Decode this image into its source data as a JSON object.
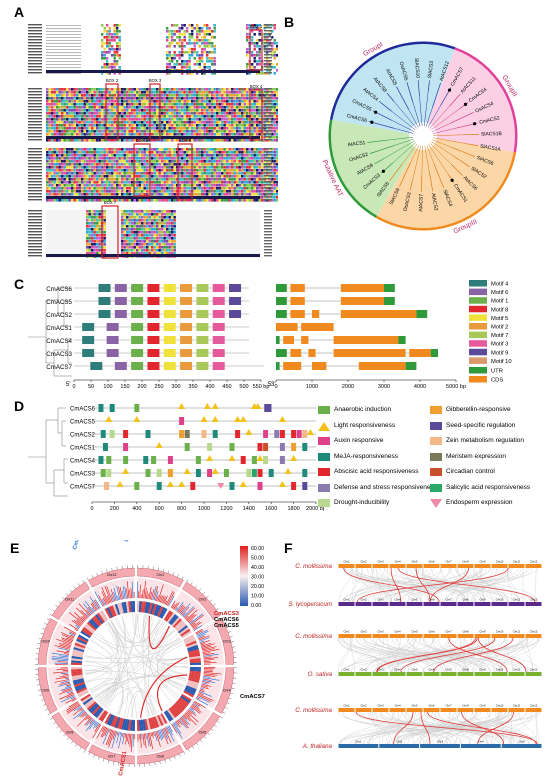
{
  "panels": {
    "a": "A",
    "b": "B",
    "c": "C",
    "d": "D",
    "e": "E",
    "f": "F"
  },
  "panelA": {
    "boxes": [
      "BOX 1",
      "BOX 2",
      "BOX 3",
      "BOX 4",
      "BOX 5",
      "BOX 6",
      "BOX 7"
    ]
  },
  "panelB": {
    "groups": [
      "GroupI",
      "GroupII",
      "GroupIII",
      "Putative AAT"
    ],
    "leaves": [
      "CmACS6",
      "CmACS5",
      "AtACS4",
      "AtACS8",
      "AtACS5",
      "OsACS5",
      "SlACS10",
      "SlACS3",
      "AtACS12",
      "CmACS7",
      "AtACS11",
      "CmACS4",
      "OsACS4",
      "CmACS2",
      "SlACS1B",
      "SlACS1A",
      "SlACS6",
      "SlACS2",
      "AtACS6",
      "CmACS1",
      "SlACS4",
      "AtACS2",
      "AtACS7",
      "OsACS3",
      "SlACS9",
      "SlACS5",
      "CmACS3",
      "AtACS9",
      "OsACS2",
      "AtACS1"
    ]
  },
  "panelC": {
    "genes": [
      "CmACS6",
      "CmACS5",
      "CmACS2",
      "CmACS1",
      "CmACS4",
      "CmACS3",
      "CmACS7"
    ],
    "motifAxis": [
      "5'",
      "0",
      "50",
      "100",
      "150",
      "200",
      "250",
      "300",
      "350",
      "400",
      "450",
      "500",
      "550 bp",
      "3'"
    ],
    "cdsAxis": [
      "5'",
      "0",
      "1000",
      "2000",
      "3000",
      "4000",
      "5000 bp"
    ],
    "motifLegend": [
      {
        "label": "Motif 4",
        "color": "#2e7d7a"
      },
      {
        "label": "Motif 6",
        "color": "#8a63a6"
      },
      {
        "label": "Motif 1",
        "color": "#6bb04a"
      },
      {
        "label": "Motif 8",
        "color": "#e2262e"
      },
      {
        "label": "Motif 5",
        "color": "#f0e23a"
      },
      {
        "label": "Motif 2",
        "color": "#e89a3c"
      },
      {
        "label": "Motif 7",
        "color": "#a8c85a"
      },
      {
        "label": "Motif 3",
        "color": "#e45a9a"
      },
      {
        "label": "Motif 9",
        "color": "#5b4a9a"
      },
      {
        "label": "Motif 10",
        "color": "#d89a6a"
      }
    ],
    "structLegend": [
      {
        "label": "UTR",
        "color": "#2e9a3a"
      },
      {
        "label": "CDS",
        "color": "#f08a1e"
      }
    ]
  },
  "panelD": {
    "genes": [
      "CmACS6",
      "CmACS5",
      "CmACS2",
      "CmACS1",
      "CmACS4",
      "CmACS3",
      "CmACS7"
    ],
    "axis": [
      "0",
      "200",
      "400",
      "600",
      "800",
      "1000",
      "1200",
      "1400",
      "1600",
      "1800",
      "2000 bp"
    ],
    "legend": [
      {
        "label": "Anaerobic induction",
        "color": "#6bb04a",
        "shape": "rect"
      },
      {
        "label": "Gibberellin-responsive",
        "color": "#f0a030",
        "shape": "rect"
      },
      {
        "label": "Light responsiveness",
        "color": "#f2c21a",
        "shape": "tri"
      },
      {
        "label": "Seed-specific regulation",
        "color": "#5b4a9a",
        "shape": "rect"
      },
      {
        "label": "Auxin responsive",
        "color": "#e0408a",
        "shape": "rect"
      },
      {
        "label": "Zein metabolism regulation",
        "color": "#f2b88a",
        "shape": "rect"
      },
      {
        "label": "MeJA-responsiveness",
        "color": "#1e8a7a",
        "shape": "rect"
      },
      {
        "label": "Meristem expression",
        "color": "#7a7a5a",
        "shape": "rect"
      },
      {
        "label": "Abscisic acid responsiveness",
        "color": "#e2262e",
        "shape": "rect"
      },
      {
        "label": "Circadian control",
        "color": "#c8502a",
        "shape": "rect"
      },
      {
        "label": "Defense and stress responsiveness",
        "color": "#8a7ab0",
        "shape": "rect"
      },
      {
        "label": "Salicylic acid responsiveness",
        "color": "#2aa86a",
        "shape": "rect"
      },
      {
        "label": "Drought-inducibility",
        "color": "#b8d890",
        "shape": "rect"
      },
      {
        "label": "Endosperm expression",
        "color": "#f08aa8",
        "shape": "tridown"
      }
    ]
  },
  "panelE": {
    "labels": [
      "CmACS2",
      "CmACS4",
      "CmACS3",
      "CmACS6",
      "CmACS5",
      "CmACS7",
      "CmACS1"
    ],
    "scale": [
      "60.00",
      "50.00",
      "40.00",
      "30.00",
      "20.00",
      "10.00",
      "0.00"
    ]
  },
  "panelF": {
    "species": [
      "C. mollissima",
      "S. lycopersicum",
      "C. mollissima",
      "O. sativa",
      "C. mollissima",
      "A. thaliana"
    ]
  }
}
